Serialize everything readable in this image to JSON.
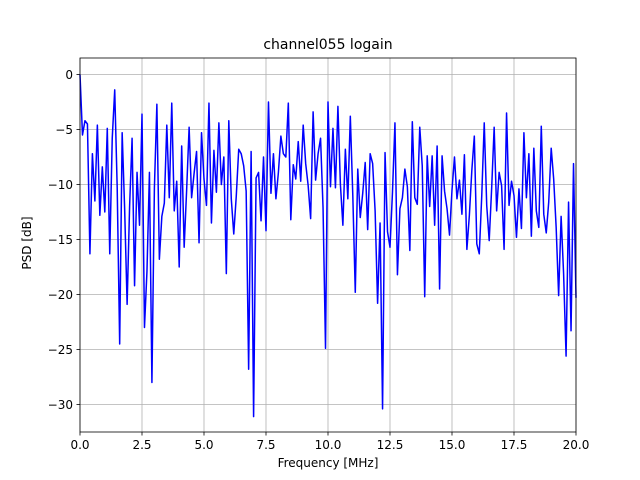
{
  "chart_data": {
    "type": "line",
    "title": "channel055 logain",
    "xlabel": "Frequency [MHz]",
    "ylabel": "PSD [dB]",
    "xlim": [
      0,
      20
    ],
    "ylim": [
      -32.5,
      1.5
    ],
    "xticks": [
      "0.0",
      "2.5",
      "5.0",
      "7.5",
      "10.0",
      "12.5",
      "15.0",
      "17.5",
      "20.0"
    ],
    "yticks": [
      "0",
      "−5",
      "−10",
      "−15",
      "−20",
      "−25",
      "−30"
    ],
    "grid": true,
    "line_color": "#0000ff",
    "series": [
      {
        "x": [
          0.0,
          0.1,
          0.2,
          0.3,
          0.4,
          0.5,
          0.6,
          0.7,
          0.8,
          0.9,
          1.0,
          1.1,
          1.2,
          1.3,
          1.4,
          1.5,
          1.6,
          1.7,
          1.8,
          1.9,
          2.0,
          2.1,
          2.2,
          2.3,
          2.4,
          2.5,
          2.6,
          2.7,
          2.8,
          2.9,
          3.0,
          3.1,
          3.2,
          3.3,
          3.4,
          3.5,
          3.6,
          3.7,
          3.8,
          3.9,
          4.0,
          4.1,
          4.2,
          4.3,
          4.4,
          4.5,
          4.6,
          4.7,
          4.8,
          4.9,
          5.0,
          5.1,
          5.2,
          5.3,
          5.4,
          5.5,
          5.6,
          5.7,
          5.8,
          5.9,
          6.0,
          6.1,
          6.2,
          6.3,
          6.4,
          6.5,
          6.6,
          6.7,
          6.8,
          6.9,
          7.0,
          7.1,
          7.2,
          7.3,
          7.4,
          7.5,
          7.6,
          7.7,
          7.8,
          7.9,
          8.0,
          8.1,
          8.2,
          8.3,
          8.4,
          8.5,
          8.6,
          8.7,
          8.8,
          8.9,
          9.0,
          9.1,
          9.2,
          9.3,
          9.4,
          9.5,
          9.6,
          9.7,
          9.8,
          9.9,
          10.0,
          10.1,
          10.2,
          10.3,
          10.4,
          10.5,
          10.6,
          10.7,
          10.8,
          10.9,
          11.0,
          11.1,
          11.2,
          11.3,
          11.4,
          11.5,
          11.6,
          11.7,
          11.8,
          11.9,
          12.0,
          12.1,
          12.2,
          12.3,
          12.4,
          12.5,
          12.6,
          12.7,
          12.8,
          12.9,
          13.0,
          13.1,
          13.2,
          13.3,
          13.4,
          13.5,
          13.6,
          13.7,
          13.8,
          13.9,
          14.0,
          14.1,
          14.2,
          14.3,
          14.4,
          14.5,
          14.6,
          14.7,
          14.8,
          14.9,
          15.0,
          15.1,
          15.2,
          15.3,
          15.4,
          15.5,
          15.6,
          15.7,
          15.8,
          15.9,
          16.0,
          16.1,
          16.2,
          16.3,
          16.4,
          16.5,
          16.6,
          16.7,
          16.8,
          16.9,
          17.0,
          17.1,
          17.2,
          17.3,
          17.4,
          17.5,
          17.6,
          17.7,
          17.8,
          17.9,
          18.0,
          18.1,
          18.2,
          18.3,
          18.4,
          18.5,
          18.6,
          18.7,
          18.8,
          18.9,
          19.0,
          19.1,
          19.2,
          19.3,
          19.4,
          19.5,
          19.6,
          19.7,
          19.8,
          19.9,
          20.0
        ],
        "y": [
          0.0,
          -5.5,
          -4.2,
          -4.5,
          -16.3,
          -7.2,
          -11.5,
          -4.6,
          -12.8,
          -8.4,
          -12.5,
          -4.9,
          -16.3,
          -5.8,
          -1.4,
          -10.3,
          -24.5,
          -5.3,
          -12.2,
          -20.9,
          -12.0,
          -5.8,
          -19.2,
          -8.9,
          -13.7,
          -3.6,
          -23.0,
          -17.9,
          -8.9,
          -28.0,
          -10.3,
          -2.7,
          -16.8,
          -12.9,
          -11.7,
          -4.6,
          -11.2,
          -2.6,
          -12.4,
          -9.7,
          -17.5,
          -6.5,
          -15.7,
          -10.5,
          -4.8,
          -11.2,
          -9.0,
          -7.0,
          -15.3,
          -5.3,
          -9.5,
          -11.9,
          -2.6,
          -13.5,
          -6.9,
          -10.7,
          -4.4,
          -10.0,
          -7.5,
          -18.1,
          -4.2,
          -11.3,
          -14.5,
          -11.1,
          -6.8,
          -7.2,
          -8.3,
          -10.6,
          -26.8,
          -7.0,
          -31.1,
          -9.4,
          -8.9,
          -13.3,
          -7.5,
          -14.2,
          -2.5,
          -10.8,
          -7.2,
          -11.3,
          -8.9,
          -5.6,
          -7.2,
          -7.5,
          -2.6,
          -13.2,
          -8.2,
          -9.5,
          -6.1,
          -9.7,
          -4.6,
          -8.1,
          -10.1,
          -13.1,
          -3.4,
          -9.6,
          -7.2,
          -5.8,
          -12.1,
          -24.9,
          -2.5,
          -10.2,
          -4.9,
          -10.3,
          -2.9,
          -10.0,
          -13.7,
          -6.8,
          -11.3,
          -3.8,
          -11.0,
          -19.8,
          -8.6,
          -13.0,
          -10.8,
          -8.0,
          -14.1,
          -7.2,
          -8.1,
          -12.4,
          -20.8,
          -13.5,
          -30.4,
          -7.1,
          -14.3,
          -15.7,
          -10.7,
          -4.4,
          -18.2,
          -12.2,
          -11.2,
          -8.6,
          -10.2,
          -16.0,
          -4.3,
          -11.2,
          -11.8,
          -4.8,
          -8.3,
          -20.2,
          -7.4,
          -12.0,
          -7.4,
          -13.7,
          -6.5,
          -19.5,
          -7.4,
          -10.6,
          -12.2,
          -14.6,
          -10.5,
          -7.5,
          -11.3,
          -9.6,
          -12.7,
          -7.3,
          -15.9,
          -12.8,
          -8.7,
          -5.6,
          -15.4,
          -16.3,
          -11.0,
          -4.4,
          -11.9,
          -15.1,
          -10.3,
          -4.8,
          -12.4,
          -8.9,
          -10.1,
          -15.9,
          -3.5,
          -11.9,
          -9.7,
          -11.0,
          -14.8,
          -10.4,
          -14.0,
          -5.3,
          -11.2,
          -7.2,
          -14.7,
          -6.7,
          -12.4,
          -13.9,
          -4.7,
          -12.7,
          -14.4,
          -11.6,
          -6.7,
          -9.5,
          -13.9,
          -20.1,
          -12.9,
          -18.1,
          -25.6,
          -11.6,
          -23.3,
          -8.1,
          -20.3
        ]
      }
    ]
  }
}
